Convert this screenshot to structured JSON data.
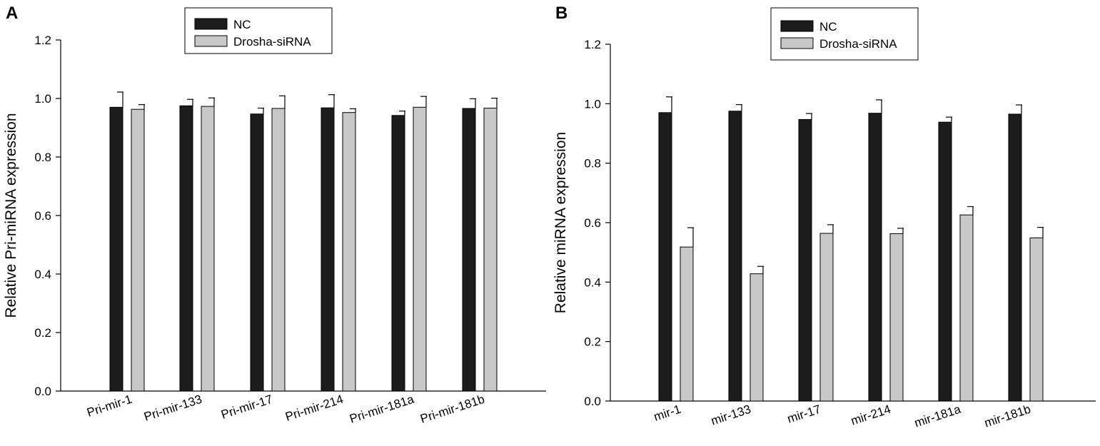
{
  "colors": {
    "nc": "#1c1c1c",
    "drosha": "#c8c8c8",
    "axis": "#000000"
  },
  "chart_data": [
    {
      "panel": "A",
      "type": "bar",
      "ylabel": "Relative  Pri-miRNA  expression",
      "xlabel": "",
      "ylim": [
        0,
        1.2
      ],
      "yticks": [
        "0.0",
        "0.2",
        "0.4",
        "0.6",
        "0.8",
        "1.0",
        "1.2"
      ],
      "categories": [
        "Pri-mir-1",
        "Pri-mir-133",
        "Pri-mir-17",
        "Pri-mir-214",
        "Pri-mir-181a",
        "Pri-mir-181b"
      ],
      "legend": {
        "position": "top-center",
        "entries": [
          "NC",
          "Drosha-siRNA"
        ]
      },
      "series": [
        {
          "name": "NC",
          "values": [
            0.97,
            0.975,
            0.947,
            0.968,
            0.942,
            0.966
          ],
          "errors": [
            0.052,
            0.022,
            0.02,
            0.045,
            0.015,
            0.033
          ]
        },
        {
          "name": "Drosha-siRNA",
          "values": [
            0.963,
            0.973,
            0.966,
            0.952,
            0.97,
            0.967
          ],
          "errors": [
            0.016,
            0.029,
            0.043,
            0.013,
            0.037,
            0.034
          ]
        }
      ]
    },
    {
      "panel": "B",
      "type": "bar",
      "ylabel": "Relative miRNA expression",
      "xlabel": "",
      "ylim": [
        0,
        1.2
      ],
      "yticks": [
        "0.0",
        "0.2",
        "0.4",
        "0.6",
        "0.8",
        "1.0",
        "1.2"
      ],
      "categories": [
        "mir-1",
        "mir-133",
        "mir-17",
        "mir-214",
        "mir-181a",
        "mir-181b"
      ],
      "legend": {
        "position": "top-center",
        "entries": [
          "NC",
          "Drosha-siRNA"
        ]
      },
      "series": [
        {
          "name": "NC",
          "values": [
            0.97,
            0.975,
            0.947,
            0.968,
            0.938,
            0.965
          ],
          "errors": [
            0.053,
            0.022,
            0.02,
            0.045,
            0.017,
            0.031
          ]
        },
        {
          "name": "Drosha-siRNA",
          "values": [
            0.518,
            0.428,
            0.564,
            0.563,
            0.626,
            0.549
          ],
          "errors": [
            0.065,
            0.025,
            0.029,
            0.018,
            0.028,
            0.035
          ]
        }
      ]
    }
  ]
}
